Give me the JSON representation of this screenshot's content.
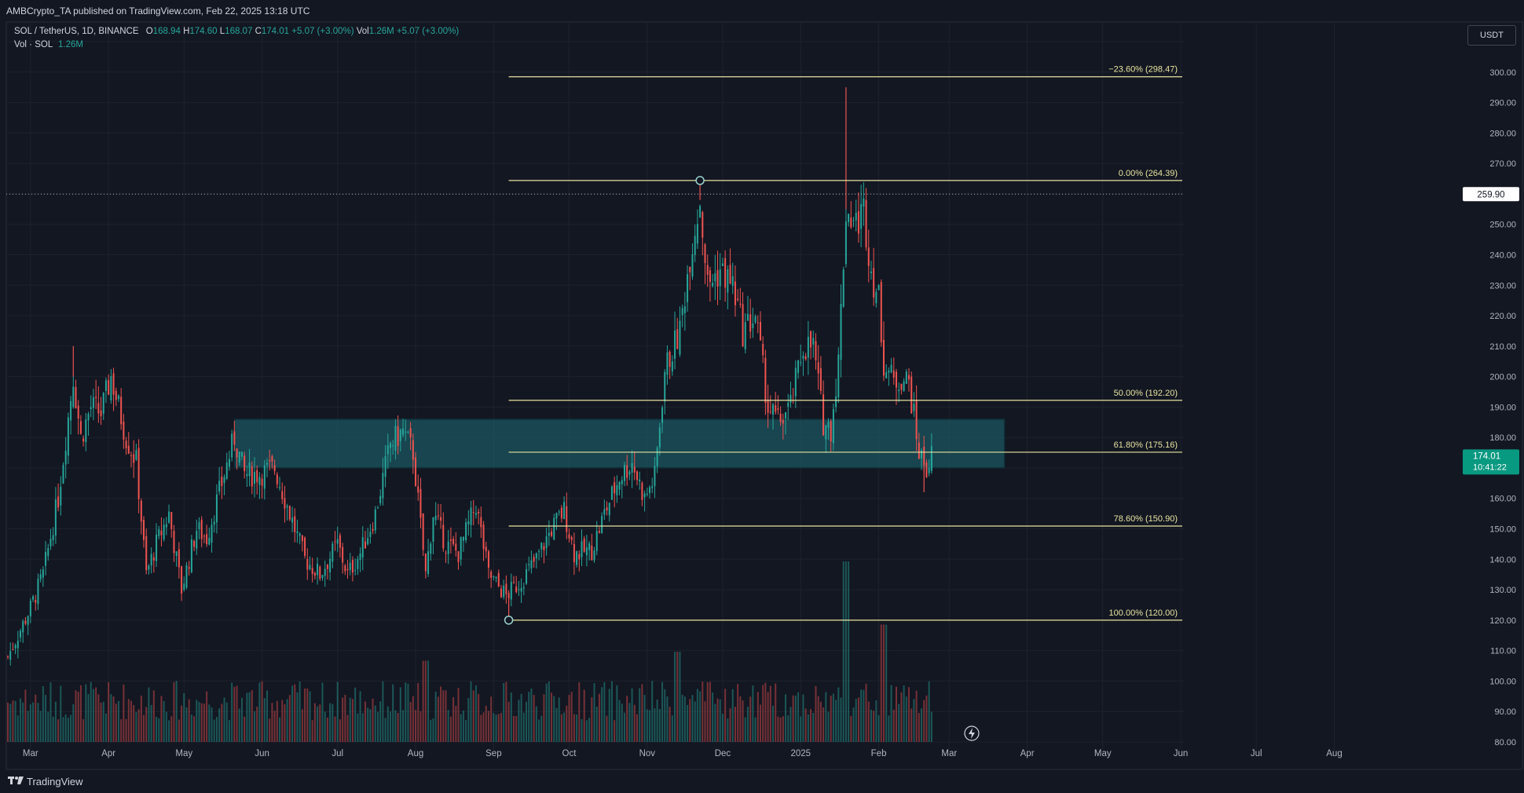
{
  "header": {
    "published": "AMBCrypto_TA published on TradingView.com, Feb 22, 2025 13:18 UTC"
  },
  "legend": {
    "symbol": "SOL / TetherUS, 1D, BINANCE",
    "o_label": "O",
    "o": "168.94",
    "h_label": "H",
    "h": "174.60",
    "l_label": "L",
    "l": "168.07",
    "c_label": "C",
    "c": "174.01",
    "change": "+5.07 (+3.00%)",
    "vol_label": "Vol",
    "vol": "1.26M",
    "vol_change": "+5.07 (+3.00%)",
    "vol_row_label": "Vol · SOL",
    "vol_row_value": "1.26M"
  },
  "currency": "USDT",
  "footer": {
    "brand": "TradingView"
  },
  "colors": {
    "background": "#131722",
    "grid": "#1e222d",
    "bull": "#26a69a",
    "bear": "#ef5350",
    "fib_line": "#e8e4a0",
    "zone": "#1e6b75",
    "price_tag": "#089981"
  },
  "chart_data": {
    "type": "candlestick",
    "title": "SOL / TetherUS, 1D, BINANCE",
    "xlabel": "",
    "ylabel": "",
    "ylim": [
      80,
      310
    ],
    "y_ticks": [
      80,
      90,
      100,
      110,
      120,
      130,
      140,
      150,
      160,
      170,
      180,
      190,
      200,
      210,
      220,
      230,
      240,
      250,
      260,
      270,
      280,
      290,
      300,
      310
    ],
    "x_ticks": [
      {
        "label": "Mar",
        "date": "2024-03-01"
      },
      {
        "label": "Apr",
        "date": "2024-04-01"
      },
      {
        "label": "May",
        "date": "2024-05-01"
      },
      {
        "label": "Jun",
        "date": "2024-06-01"
      },
      {
        "label": "Jul",
        "date": "2024-07-01"
      },
      {
        "label": "Aug",
        "date": "2024-08-01"
      },
      {
        "label": "Sep",
        "date": "2024-09-01"
      },
      {
        "label": "Oct",
        "date": "2024-10-01"
      },
      {
        "label": "Nov",
        "date": "2024-11-01"
      },
      {
        "label": "Dec",
        "date": "2024-12-01"
      },
      {
        "label": "2025",
        "date": "2025-01-01"
      },
      {
        "label": "Feb",
        "date": "2025-02-01"
      },
      {
        "label": "Mar",
        "date": "2025-03-01"
      },
      {
        "label": "Apr",
        "date": "2025-04-01"
      },
      {
        "label": "May",
        "date": "2025-05-01"
      },
      {
        "label": "Jun",
        "date": "2025-06-01"
      },
      {
        "label": "Jul",
        "date": "2025-07-01"
      },
      {
        "label": "Aug",
        "date": "2025-08-01"
      }
    ],
    "x_range": [
      "2024-02-21",
      "2025-08-28"
    ],
    "price_path": [
      [
        "2024-02-21",
        108
      ],
      [
        "2024-03-01",
        124
      ],
      [
        "2024-03-06",
        135
      ],
      [
        "2024-03-12",
        160
      ],
      [
        "2024-03-18",
        200
      ],
      [
        "2024-03-21",
        180
      ],
      [
        "2024-03-25",
        190
      ],
      [
        "2024-03-29",
        188
      ],
      [
        "2024-04-02",
        200
      ],
      [
        "2024-04-08",
        180
      ],
      [
        "2024-04-12",
        172
      ],
      [
        "2024-04-16",
        135
      ],
      [
        "2024-04-20",
        145
      ],
      [
        "2024-04-25",
        155
      ],
      [
        "2024-04-30",
        130
      ],
      [
        "2024-05-06",
        150
      ],
      [
        "2024-05-10",
        147
      ],
      [
        "2024-05-15",
        162
      ],
      [
        "2024-05-21",
        180
      ],
      [
        "2024-05-25",
        168
      ],
      [
        "2024-05-31",
        168
      ],
      [
        "2024-06-06",
        170
      ],
      [
        "2024-06-12",
        155
      ],
      [
        "2024-06-18",
        140
      ],
      [
        "2024-06-24",
        135
      ],
      [
        "2024-07-01",
        145
      ],
      [
        "2024-07-05",
        135
      ],
      [
        "2024-07-10",
        142
      ],
      [
        "2024-07-16",
        155
      ],
      [
        "2024-07-22",
        178
      ],
      [
        "2024-07-27",
        182
      ],
      [
        "2024-07-31",
        175
      ],
      [
        "2024-08-05",
        135
      ],
      [
        "2024-08-08",
        155
      ],
      [
        "2024-08-13",
        145
      ],
      [
        "2024-08-18",
        142
      ],
      [
        "2024-08-25",
        158
      ],
      [
        "2024-08-30",
        135
      ],
      [
        "2024-09-06",
        128
      ],
      [
        "2024-09-12",
        133
      ],
      [
        "2024-09-18",
        140
      ],
      [
        "2024-09-24",
        150
      ],
      [
        "2024-09-29",
        156
      ],
      [
        "2024-10-03",
        142
      ],
      [
        "2024-10-10",
        143
      ],
      [
        "2024-10-15",
        155
      ],
      [
        "2024-10-21",
        167
      ],
      [
        "2024-10-26",
        172
      ],
      [
        "2024-10-31",
        160
      ],
      [
        "2024-11-04",
        167
      ],
      [
        "2024-11-08",
        202
      ],
      [
        "2024-11-14",
        215
      ],
      [
        "2024-11-18",
        240
      ],
      [
        "2024-11-22",
        258
      ],
      [
        "2024-11-25",
        230
      ],
      [
        "2024-11-30",
        235
      ],
      [
        "2024-12-05",
        230
      ],
      [
        "2024-12-09",
        215
      ],
      [
        "2024-12-14",
        220
      ],
      [
        "2024-12-19",
        190
      ],
      [
        "2024-12-23",
        185
      ],
      [
        "2024-12-28",
        190
      ],
      [
        "2025-01-02",
        210
      ],
      [
        "2025-01-06",
        210
      ],
      [
        "2025-01-10",
        185
      ],
      [
        "2025-01-13",
        183
      ],
      [
        "2025-01-16",
        205
      ],
      [
        "2025-01-19",
        255
      ],
      [
        "2025-01-23",
        250
      ],
      [
        "2025-01-26",
        255
      ],
      [
        "2025-01-29",
        235
      ],
      [
        "2025-02-01",
        225
      ],
      [
        "2025-02-03",
        205
      ],
      [
        "2025-02-07",
        198
      ],
      [
        "2025-02-10",
        200
      ],
      [
        "2025-02-13",
        198
      ],
      [
        "2025-02-17",
        175
      ],
      [
        "2025-02-20",
        170
      ],
      [
        "2025-02-22",
        174
      ]
    ],
    "last_candle": {
      "date": "2025-02-22",
      "open": 168.94,
      "high": 174.6,
      "low": 168.07,
      "close": 174.01
    },
    "extremes": [
      {
        "date": "2024-03-18",
        "high": 210
      },
      {
        "date": "2024-09-07",
        "low": 120
      },
      {
        "date": "2024-11-22",
        "high": 264.39
      },
      {
        "date": "2025-01-19",
        "high": 295
      },
      {
        "date": "2025-02-19",
        "low": 162
      }
    ],
    "fibonacci": {
      "start_date": "2024-09-07",
      "end_date": "2025-08-28",
      "levels": [
        {
          "label": "−23.60% (298.47)",
          "price": 298.47
        },
        {
          "label": "0.00% (264.39)",
          "price": 264.39
        },
        {
          "label": "50.00% (192.20)",
          "price": 192.2
        },
        {
          "label": "61.80% (175.16)",
          "price": 175.16
        },
        {
          "label": "78.60% (150.90)",
          "price": 150.9
        },
        {
          "label": "100.00% (120.00)",
          "price": 120.0
        }
      ],
      "anchors": [
        {
          "date": "2024-11-22",
          "price": 264.39
        },
        {
          "date": "2024-09-07",
          "price": 120.0
        }
      ]
    },
    "zone": {
      "date_start": "2024-05-21",
      "date_end": "2025-03-23",
      "low": 170,
      "high": 186
    },
    "dotted_line": {
      "price": 259.9,
      "label": "259.90"
    },
    "price_tag": {
      "price": 174.01,
      "label": "174.01",
      "countdown": "10:41:22"
    },
    "volume": {
      "label": "Vol · SOL",
      "spikes": [
        {
          "date": "2024-08-05",
          "ratio": 0.45
        },
        {
          "date": "2024-11-13",
          "ratio": 0.5
        },
        {
          "date": "2025-01-19",
          "ratio": 1.0
        },
        {
          "date": "2025-02-03",
          "ratio": 0.65
        }
      ]
    }
  }
}
